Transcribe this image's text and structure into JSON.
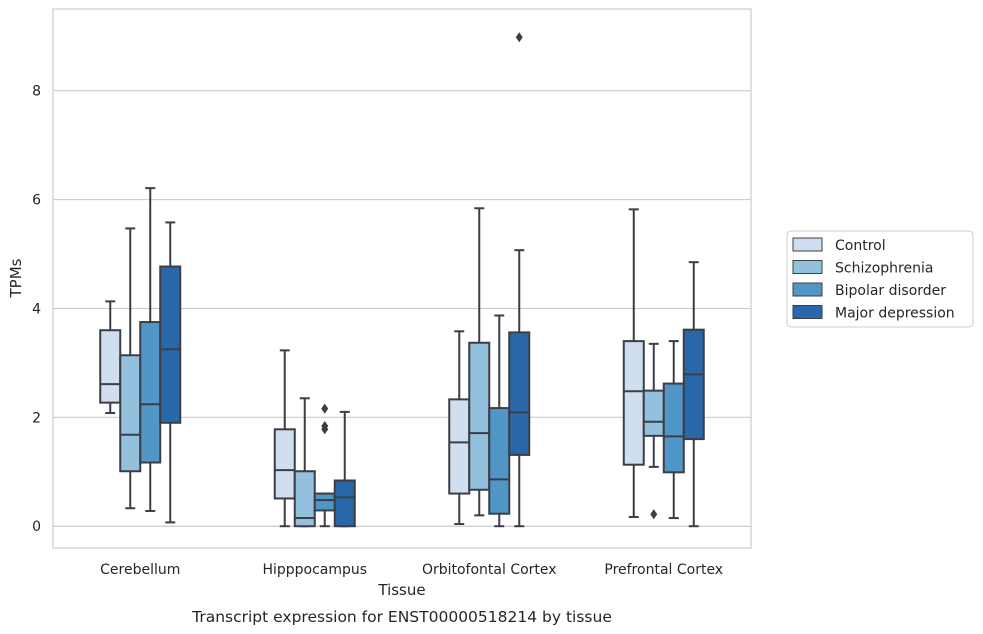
{
  "caption": "Transcript expression for ENST00000518214 by tissue",
  "colors": {
    "Control": "#cfdff0",
    "Schizophrenia": "#93c0dc",
    "Bipolar disorder": "#5097c7",
    "Major depression": "#2868a8",
    "grid": "#cccccc",
    "frame": "#cccccc",
    "box_line": "#3d3d47"
  },
  "chart_data": {
    "type": "box",
    "xlabel": "Tissue",
    "ylabel": "TPMs",
    "ylim": [
      -0.4,
      9.5
    ],
    "yticks": [
      0,
      2,
      4,
      6,
      8
    ],
    "grid": "horizontal",
    "legend_position": "right",
    "categories": [
      "Cerebellum",
      "Hipppocampus",
      "Orbitofontal Cortex",
      "Prefrontal Cortex"
    ],
    "series": [
      {
        "name": "Control",
        "boxes": [
          {
            "whislo": 2.08,
            "q1": 2.27,
            "med": 2.61,
            "q3": 3.6,
            "whishi": 4.13,
            "fliers": []
          },
          {
            "whislo": 0.0,
            "q1": 0.51,
            "med": 1.03,
            "q3": 1.78,
            "whishi": 3.23,
            "fliers": []
          },
          {
            "whislo": 0.04,
            "q1": 0.6,
            "med": 1.54,
            "q3": 2.33,
            "whishi": 3.58,
            "fliers": []
          },
          {
            "whislo": 0.17,
            "q1": 1.13,
            "med": 2.48,
            "q3": 3.4,
            "whishi": 5.82,
            "fliers": []
          }
        ]
      },
      {
        "name": "Schizophrenia",
        "boxes": [
          {
            "whislo": 0.33,
            "q1": 1.01,
            "med": 1.68,
            "q3": 3.14,
            "whishi": 5.47,
            "fliers": []
          },
          {
            "whislo": 0.0,
            "q1": 0.0,
            "med": 0.15,
            "q3": 1.01,
            "whishi": 2.35,
            "fliers": []
          },
          {
            "whislo": 0.2,
            "q1": 0.67,
            "med": 1.71,
            "q3": 3.37,
            "whishi": 5.84,
            "fliers": []
          },
          {
            "whislo": 1.09,
            "q1": 1.66,
            "med": 1.92,
            "q3": 2.49,
            "whishi": 3.35,
            "fliers": [
              0.22
            ]
          }
        ]
      },
      {
        "name": "Bipolar disorder",
        "boxes": [
          {
            "whislo": 0.28,
            "q1": 1.17,
            "med": 2.24,
            "q3": 3.75,
            "whishi": 6.21,
            "fliers": []
          },
          {
            "whislo": 0.0,
            "q1": 0.29,
            "med": 0.48,
            "q3": 0.6,
            "whishi": 0.6,
            "fliers": [
              1.78,
              1.84,
              2.16
            ]
          },
          {
            "whislo": 0.0,
            "q1": 0.23,
            "med": 0.86,
            "q3": 2.17,
            "whishi": 3.87,
            "fliers": []
          },
          {
            "whislo": 0.15,
            "q1": 0.99,
            "med": 1.65,
            "q3": 2.62,
            "whishi": 3.4,
            "fliers": []
          }
        ]
      },
      {
        "name": "Major depression",
        "boxes": [
          {
            "whislo": 0.07,
            "q1": 1.9,
            "med": 3.25,
            "q3": 4.77,
            "whishi": 5.58,
            "fliers": []
          },
          {
            "whislo": 0.0,
            "q1": 0.0,
            "med": 0.53,
            "q3": 0.84,
            "whishi": 2.1,
            "fliers": []
          },
          {
            "whislo": 0.0,
            "q1": 1.31,
            "med": 2.09,
            "q3": 3.56,
            "whishi": 5.07,
            "fliers": [
              8.98
            ]
          },
          {
            "whislo": 0.0,
            "q1": 1.6,
            "med": 2.79,
            "q3": 3.61,
            "whishi": 4.85,
            "fliers": []
          }
        ]
      }
    ]
  }
}
